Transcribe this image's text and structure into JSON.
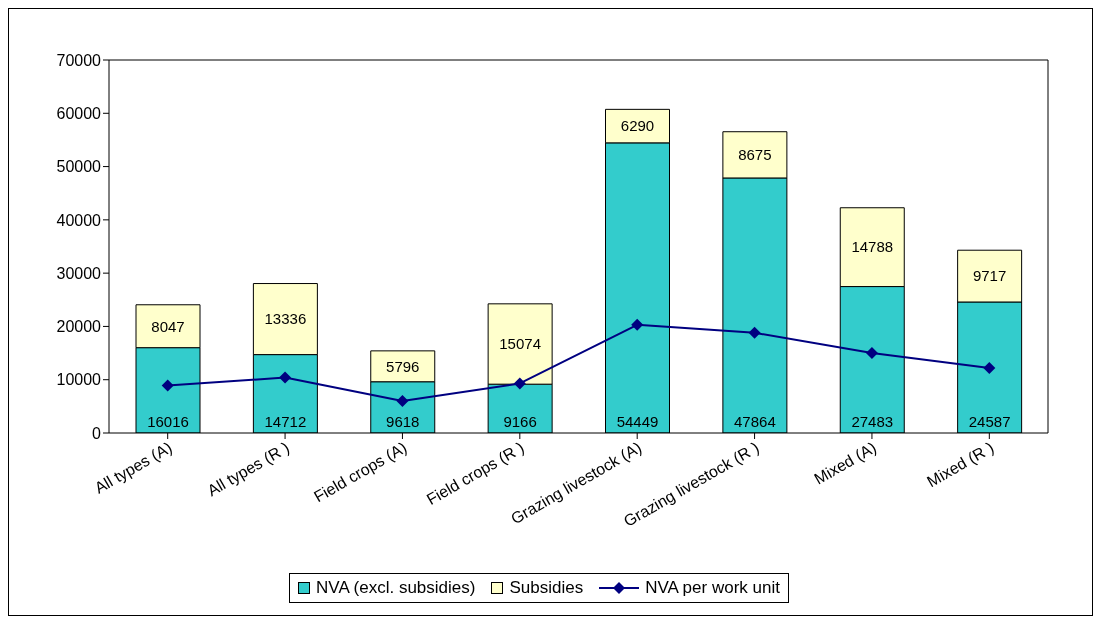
{
  "chart_data": {
    "type": "bar",
    "stacked": true,
    "categories": [
      "All types (A)",
      "All types (R )",
      "Field crops (A)",
      "Field crops (R )",
      "Grazing livestock (A)",
      "Grazing livestock (R )",
      "Mixed (A)",
      "Mixed (R )"
    ],
    "series": [
      {
        "name": "NVA (excl. subsidies)",
        "color": "#33cccc",
        "values": [
          16016,
          14712,
          9618,
          9166,
          54449,
          47864,
          27483,
          24587
        ],
        "value_labels": [
          "16016",
          "14712",
          "9618",
          "9166",
          "54449",
          "47864",
          "27483",
          "24587"
        ]
      },
      {
        "name": "Subsidies",
        "color": "#ffffcc",
        "values": [
          8047,
          13336,
          5796,
          15074,
          6290,
          8675,
          14788,
          9717
        ],
        "value_labels": [
          "8047",
          "13336",
          "5796",
          "15074",
          "6290",
          "8675",
          "14788",
          "9717"
        ]
      },
      {
        "name": "NVA per work unit",
        "type": "line",
        "color": "#000080",
        "marker": "diamond",
        "values": [
          8900,
          10400,
          6000,
          9300,
          20300,
          18800,
          15000,
          12200
        ]
      }
    ],
    "ylim": [
      0,
      70000
    ],
    "yticks": [
      0,
      10000,
      20000,
      30000,
      40000,
      50000,
      60000,
      70000
    ],
    "grid": false,
    "legend": "bottom"
  }
}
